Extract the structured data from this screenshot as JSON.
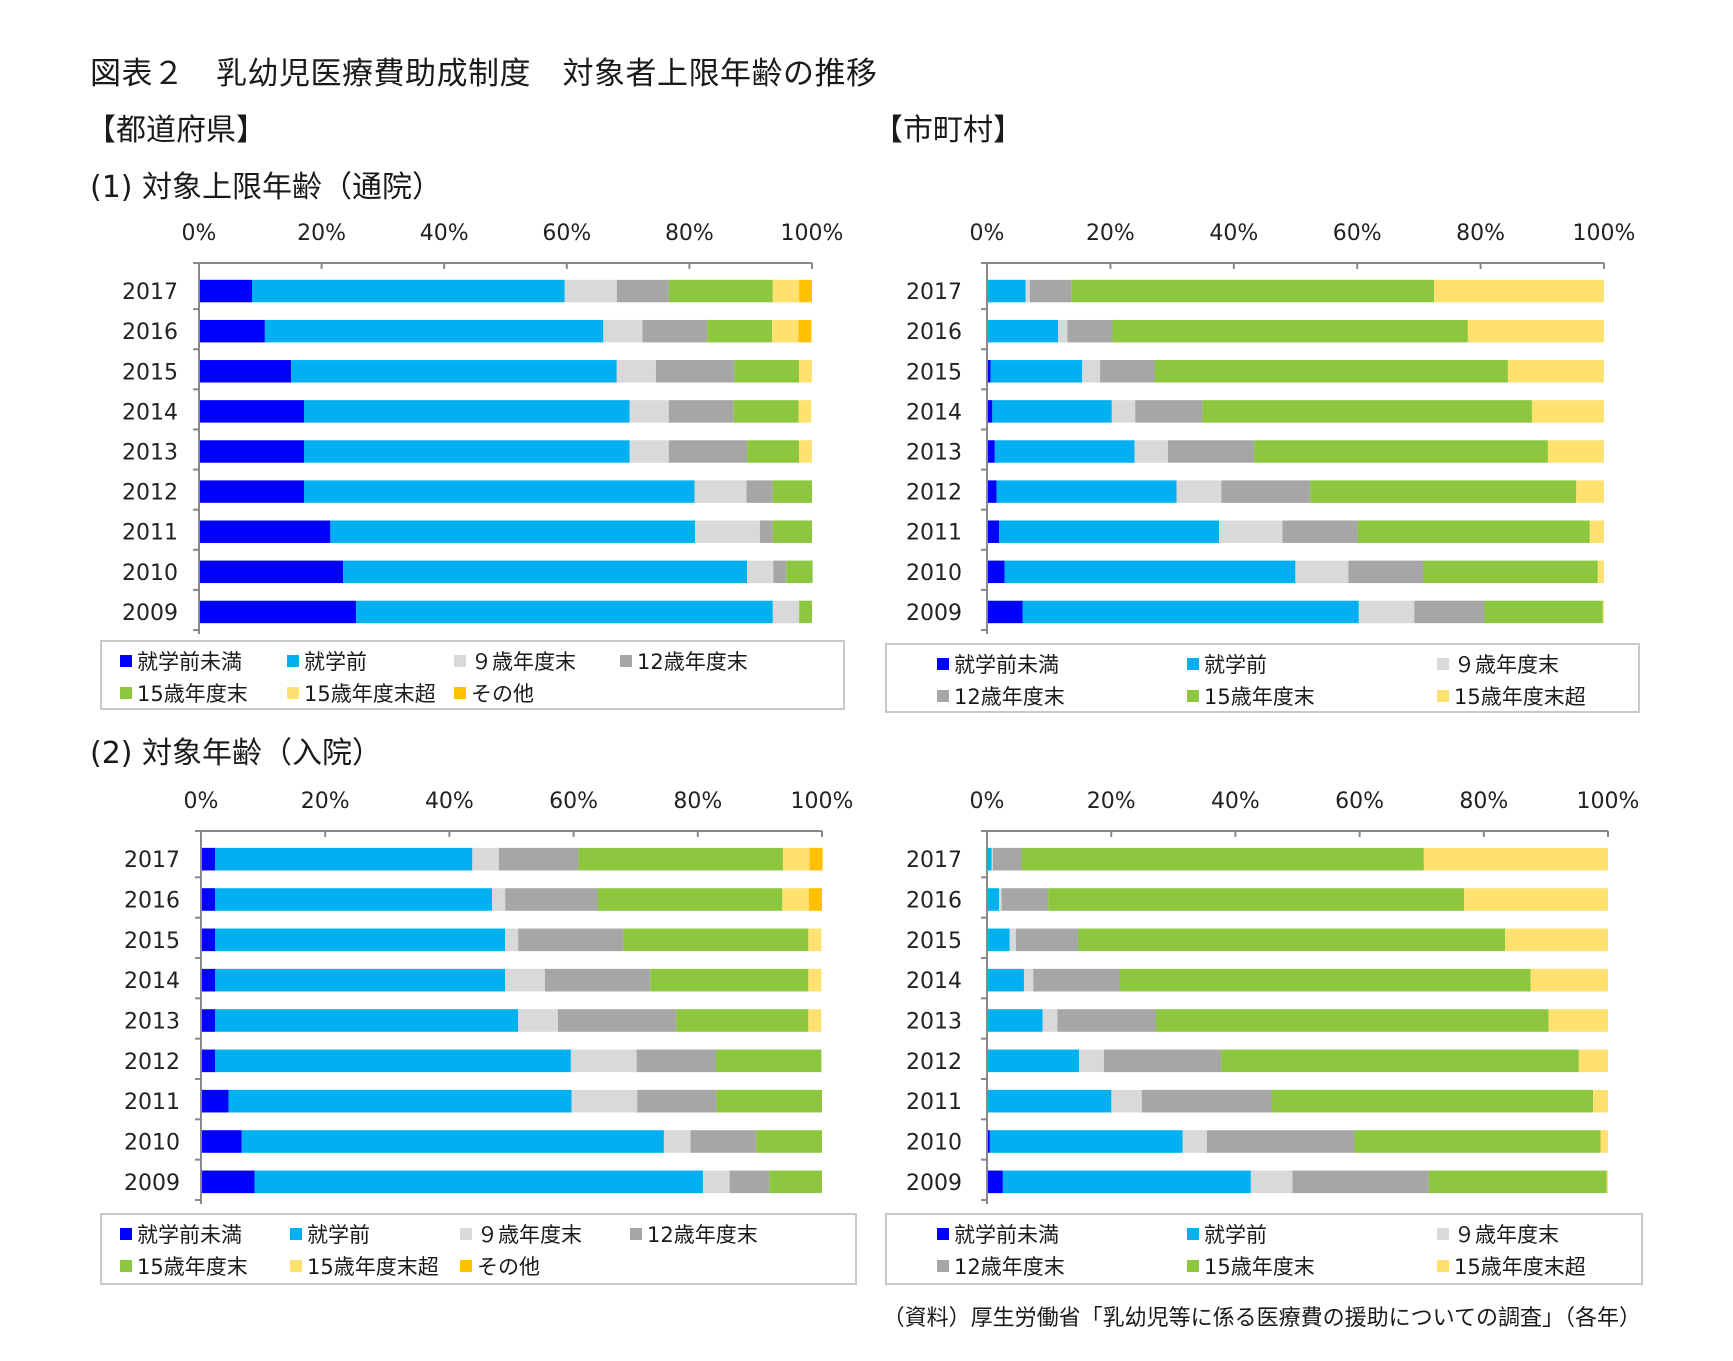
{
  "title": "図表２　乳幼児医療費助成制度　対象者上限年齢の推移",
  "headers": {
    "prefecture": "【都道府県】",
    "municipality": "【市町村】",
    "section1": "(1) 対象上限年齢（通院）",
    "section2": "(2) 対象年齢（入院）"
  },
  "source": "（資料）厚生労働省「乳幼児等に係る医療費の援助についての調査」（各年）",
  "colors": {
    "就学前未満": "#0000ff",
    "就学前": "#00b0f0",
    "９歳年度末": "#d9d9d9",
    "12歳年度末": "#a6a6a6",
    "15歳年度末": "#8dc63f",
    "15歳年度末超": "#ffe170",
    "その他": "#ffc000"
  },
  "legends": {
    "prefecture": [
      "就学前未満",
      "就学前",
      "９歳年度末",
      "12歳年度末",
      "15歳年度末",
      "15歳年度末超",
      "その他"
    ],
    "municipality": [
      "就学前未満",
      "就学前",
      "９歳年度末",
      "12歳年度末",
      "15歳年度末",
      "15歳年度末超"
    ]
  },
  "chart_data": [
    {
      "id": "pref-outpatient",
      "type": "bar",
      "orientation": "horizontal-stacked-100",
      "title": "【都道府県】(1) 対象上限年齢（通院）",
      "xlim": [
        0,
        100
      ],
      "xticks": [
        "0%",
        "20%",
        "40%",
        "60%",
        "80%",
        "100%"
      ],
      "categories": [
        "2017",
        "2016",
        "2015",
        "2014",
        "2013",
        "2012",
        "2011",
        "2010",
        "2009"
      ],
      "legend_position": "bottom",
      "series": [
        {
          "name": "就学前未満",
          "values": [
            8.5,
            10.6,
            14.9,
            17.0,
            17.0,
            17.0,
            21.3,
            23.4,
            25.5
          ]
        },
        {
          "name": "就学前",
          "values": [
            51.1,
            55.3,
            53.2,
            53.2,
            53.2,
            63.8,
            59.6,
            66.0,
            68.1
          ]
        },
        {
          "name": "９歳年度末",
          "values": [
            8.5,
            6.4,
            6.4,
            6.4,
            6.4,
            8.5,
            10.6,
            4.3,
            4.3
          ]
        },
        {
          "name": "12歳年度末",
          "values": [
            8.5,
            10.6,
            12.8,
            10.6,
            12.8,
            4.3,
            2.1,
            2.1,
            0
          ]
        },
        {
          "name": "15歳年度末",
          "values": [
            17.0,
            10.6,
            10.6,
            10.6,
            8.5,
            6.4,
            6.4,
            4.3,
            2.1
          ]
        },
        {
          "name": "15歳年度末超",
          "values": [
            4.3,
            4.3,
            2.1,
            2.1,
            2.1,
            0,
            0,
            0,
            0
          ]
        },
        {
          "name": "その他",
          "values": [
            2.1,
            2.1,
            0,
            0,
            0,
            0,
            0,
            0,
            0
          ]
        }
      ]
    },
    {
      "id": "muni-outpatient",
      "type": "bar",
      "orientation": "horizontal-stacked-100",
      "title": "【市町村】(1) 対象上限年齢（通院）",
      "xlim": [
        0,
        100
      ],
      "xticks": [
        "0%",
        "20%",
        "40%",
        "60%",
        "80%",
        "100%"
      ],
      "categories": [
        "2017",
        "2016",
        "2015",
        "2014",
        "2013",
        "2012",
        "2011",
        "2010",
        "2009"
      ],
      "legend_position": "bottom",
      "series": [
        {
          "name": "就学前未満",
          "values": [
            0,
            0,
            0.4,
            0.7,
            1.1,
            1.4,
            1.8,
            2.7,
            5.6
          ]
        },
        {
          "name": "就学前",
          "values": [
            6.1,
            11.4,
            14.9,
            19.4,
            22.7,
            29.2,
            35.7,
            47.2,
            54.6
          ]
        },
        {
          "name": "９歳年度末",
          "values": [
            0.7,
            1.5,
            2.9,
            3.8,
            5.4,
            7.3,
            10.3,
            8.6,
            9.0
          ]
        },
        {
          "name": "12歳年度末",
          "values": [
            6.8,
            7.3,
            8.9,
            10.9,
            14.0,
            14.4,
            12.2,
            12.2,
            11.4
          ]
        },
        {
          "name": "15歳年度末",
          "values": [
            58.8,
            57.7,
            57.3,
            53.5,
            47.7,
            43.2,
            37.7,
            28.3,
            19.2
          ]
        },
        {
          "name": "15歳年度末超",
          "values": [
            27.6,
            22.1,
            15.6,
            11.7,
            9.1,
            4.5,
            2.3,
            1.0,
            0.2
          ]
        }
      ]
    },
    {
      "id": "pref-inpatient",
      "type": "bar",
      "orientation": "horizontal-stacked-100",
      "title": "【都道府県】(2) 対象年齢（入院）",
      "xlim": [
        0,
        100
      ],
      "xticks": [
        "0%",
        "20%",
        "40%",
        "60%",
        "80%",
        "100%"
      ],
      "categories": [
        "2017",
        "2016",
        "2015",
        "2014",
        "2013",
        "2012",
        "2011",
        "2010",
        "2009"
      ],
      "legend_position": "bottom",
      "series": [
        {
          "name": "就学前未満",
          "values": [
            2.1,
            2.1,
            2.1,
            2.1,
            2.1,
            2.1,
            4.3,
            6.4,
            8.5
          ]
        },
        {
          "name": "就学前",
          "values": [
            41.5,
            44.7,
            46.8,
            46.8,
            48.9,
            57.4,
            55.3,
            68.1,
            72.3
          ]
        },
        {
          "name": "９歳年度末",
          "values": [
            4.3,
            2.1,
            2.1,
            6.4,
            6.4,
            10.6,
            10.6,
            4.3,
            4.3
          ]
        },
        {
          "name": "12歳年度末",
          "values": [
            12.8,
            14.9,
            17.0,
            17.0,
            19.1,
            12.8,
            12.8,
            10.6,
            6.4
          ]
        },
        {
          "name": "15歳年度末",
          "values": [
            33.0,
            29.8,
            29.8,
            25.5,
            21.3,
            17.0,
            17.0,
            10.6,
            8.5
          ]
        },
        {
          "name": "15歳年度末超",
          "values": [
            4.3,
            4.3,
            2.1,
            2.1,
            2.1,
            0,
            0,
            0,
            0
          ]
        },
        {
          "name": "その他",
          "values": [
            2.1,
            2.1,
            0,
            0,
            0,
            0,
            0,
            0,
            0
          ]
        }
      ]
    },
    {
      "id": "muni-inpatient",
      "type": "bar",
      "orientation": "horizontal-stacked-100",
      "title": "【市町村】(2) 対象年齢（入院）",
      "xlim": [
        0,
        100
      ],
      "xticks": [
        "0%",
        "20%",
        "40%",
        "60%",
        "80%",
        "100%"
      ],
      "categories": [
        "2017",
        "2016",
        "2015",
        "2014",
        "2013",
        "2012",
        "2011",
        "2010",
        "2009"
      ],
      "legend_position": "bottom",
      "series": [
        {
          "name": "就学前未満",
          "values": [
            0,
            0,
            0,
            0,
            0,
            0,
            0,
            0.3,
            2.4
          ]
        },
        {
          "name": "就学前",
          "values": [
            0.6,
            1.8,
            3.5,
            5.8,
            8.8,
            14.7,
            19.9,
            31.1,
            40.0
          ]
        },
        {
          "name": "９歳年度末",
          "values": [
            0.2,
            0.4,
            1.0,
            1.5,
            2.4,
            4.0,
            4.9,
            3.9,
            6.7
          ]
        },
        {
          "name": "12歳年度末",
          "values": [
            4.6,
            7.5,
            10.0,
            14.0,
            15.9,
            18.9,
            21.0,
            23.8,
            22.0
          ]
        },
        {
          "name": "15歳年度末",
          "values": [
            64.9,
            67.1,
            68.9,
            66.2,
            63.3,
            57.7,
            51.8,
            39.7,
            28.7
          ]
        },
        {
          "name": "15歳年度末超",
          "values": [
            29.7,
            23.2,
            16.6,
            12.5,
            9.6,
            4.7,
            2.4,
            1.2,
            0.2
          ]
        }
      ]
    }
  ]
}
